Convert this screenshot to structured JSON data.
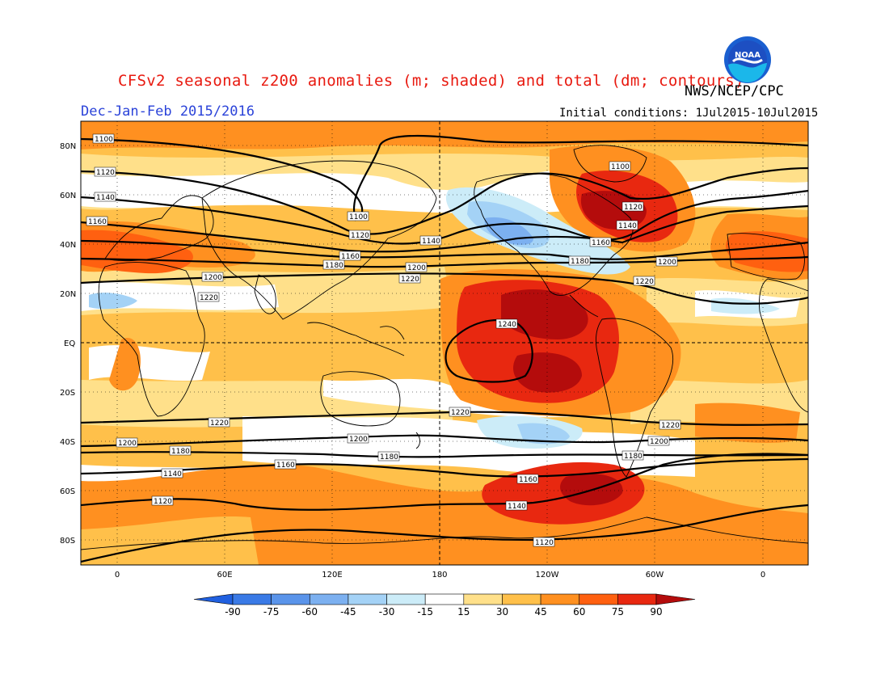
{
  "header": {
    "title": "CFSv2 seasonal z200 anomalies (m; shaded) and total (dm; contours)",
    "organization": "NWS/NCEP/CPC",
    "season": "Dec-Jan-Feb 2015/2016",
    "initial_conditions": "Initial conditions: 1Jul2015-10Jul2015",
    "logo_text": "NOAA"
  },
  "map": {
    "lat_labels": [
      "80N",
      "60N",
      "40N",
      "20N",
      "EQ",
      "20S",
      "40S",
      "60S",
      "80S"
    ],
    "lon_labels": [
      "0",
      "60E",
      "120E",
      "180",
      "120W",
      "60W",
      "0"
    ],
    "contour_labels": [
      "1100",
      "1120",
      "1140",
      "1160",
      "1180",
      "1200",
      "1220",
      "1240"
    ]
  },
  "colorbar": {
    "ticks": [
      "-90",
      "-75",
      "-60",
      "-45",
      "-30",
      "-15",
      "15",
      "30",
      "45",
      "60",
      "75",
      "90"
    ],
    "colors": [
      "#2060e0",
      "#3a7ae6",
      "#5a94ea",
      "#7cb0f0",
      "#a4d2f6",
      "#ccecf8",
      "#ffffff",
      "#ffe08a",
      "#ffc04a",
      "#ff9020",
      "#ff6010",
      "#e82810",
      "#b40c0c"
    ]
  }
}
